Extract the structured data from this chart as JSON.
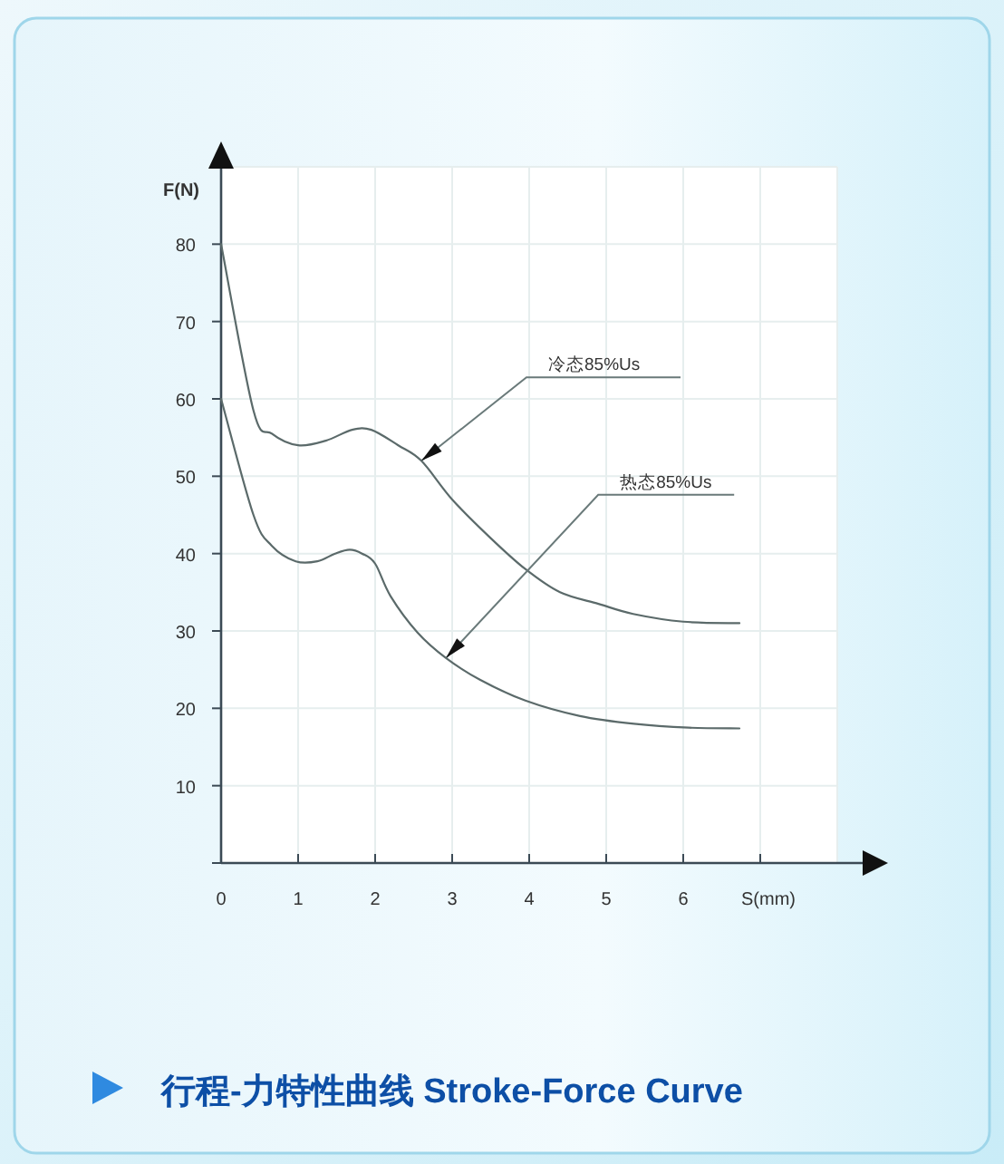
{
  "chart_data": {
    "type": "line",
    "title": "行程-力特性曲线 Stroke-Force Curve",
    "xlabel": "S(mm)",
    "ylabel": "F(N)",
    "xlim": [
      0,
      8
    ],
    "ylim": [
      0,
      90
    ],
    "xticks": [
      0,
      1,
      2,
      3,
      4,
      5,
      6,
      {
        "value": 7,
        "label": null
      }
    ],
    "yticks": [
      {
        "value": 0,
        "label": null
      },
      10,
      20,
      30,
      40,
      50,
      60,
      70,
      80
    ],
    "grid": true,
    "marker": "none",
    "line_style": "solid",
    "series": [
      {
        "color": "#5b6a6a",
        "x": [
          0,
          0.42,
          0.66,
          1.0,
          1.36,
          1.7,
          1.95,
          2.3,
          2.6,
          3.0,
          3.5,
          3.95,
          4.4,
          4.9,
          5.35,
          6.0,
          6.73
        ],
        "values": [
          80,
          58.5,
          55.5,
          54,
          54.6,
          56,
          56,
          54,
          52,
          47,
          42,
          38,
          35,
          33.5,
          32.2,
          31.2,
          31
        ]
      },
      {
        "color": "#5b6a6a",
        "x": [
          0,
          0.42,
          0.66,
          0.97,
          1.25,
          1.48,
          1.67,
          1.83,
          2.0,
          2.2,
          2.55,
          2.92,
          3.36,
          3.95,
          4.66,
          5.36,
          6.07,
          6.73
        ],
        "values": [
          60,
          45,
          41,
          39,
          39,
          40,
          40.5,
          40,
          38.7,
          34.5,
          29.8,
          26.5,
          23.7,
          21,
          19,
          18,
          17.5,
          17.4
        ]
      }
    ],
    "annotations": [
      {
        "text": "冷态85%Us",
        "x": 2.6,
        "y": 52
      },
      {
        "text": "热态85%Us",
        "x": 2.92,
        "y": 26.5
      }
    ]
  }
}
